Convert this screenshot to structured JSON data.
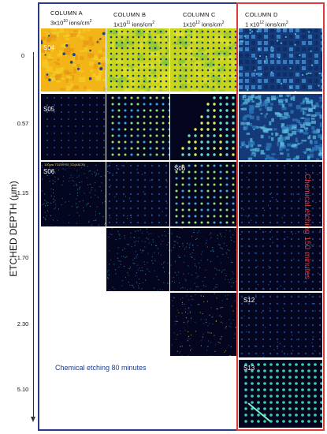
{
  "columns": [
    {
      "title": "COLUMN A",
      "fluence_base": "3x10",
      "fluence_exp": "10",
      "fluence_unit": " ions/cm",
      "unit_exp": "2"
    },
    {
      "title": "COLUMN B",
      "fluence_base": "1x10",
      "fluence_exp": "11",
      "fluence_unit": " ions/cm",
      "unit_exp": "2"
    },
    {
      "title": "COLUMN C",
      "fluence_base": "1x10",
      "fluence_exp": "12",
      "fluence_unit": " ions/cm",
      "unit_exp": "2"
    },
    {
      "title": "COLUMN D",
      "fluence_base": "1 x10",
      "fluence_exp": "12",
      "fluence_unit": " ions/cm",
      "unit_exp": "2"
    }
  ],
  "y_axis": {
    "label": "ETCHED DEPTH (μm)",
    "ticks": [
      "0",
      "0.57",
      "1.15",
      "1.70",
      "2.30",
      "5.10"
    ]
  },
  "tile_labels": {
    "a0": "S04",
    "a1": "S05",
    "a2": "S06",
    "c2": "S06",
    "d4": "S12",
    "d5": "S13"
  },
  "scale_bar": "100μm  TDZ09  SE  ZD(ASCR)",
  "annotations": {
    "blue_frame": "Chemical etching 80 minutes",
    "red_frame": "Chemical etching 150 minutes"
  },
  "colors": {
    "blue_frame": "#2b3a86",
    "red_frame": "#e23a3a"
  }
}
